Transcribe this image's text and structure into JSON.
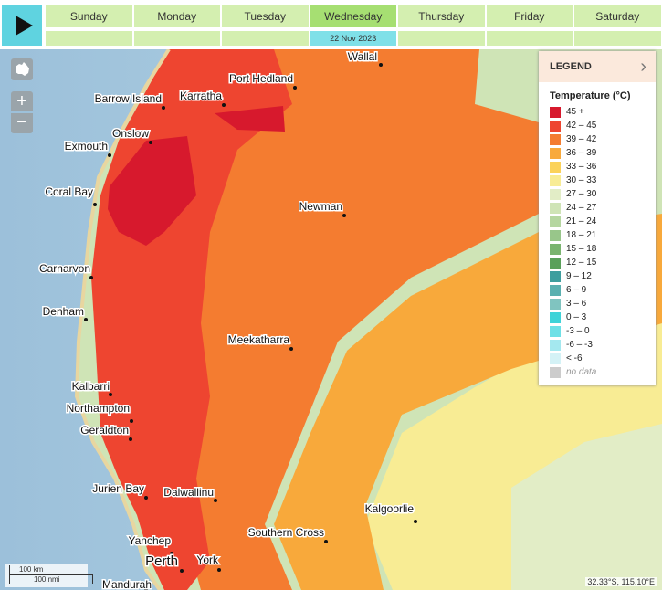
{
  "days": [
    "Sunday",
    "Monday",
    "Tuesday",
    "Wednesday",
    "Thursday",
    "Friday",
    "Saturday"
  ],
  "selected_day": 3,
  "selected_date": "22 Nov 2023",
  "legend": {
    "header": "LEGEND",
    "title": "Temperature (°C)",
    "items": [
      {
        "label": "45 +",
        "color": "#d7192d"
      },
      {
        "label": "42 – 45",
        "color": "#ee4530"
      },
      {
        "label": "39 – 42",
        "color": "#f47c30"
      },
      {
        "label": "36 – 39",
        "color": "#f8a93b"
      },
      {
        "label": "33 – 36",
        "color": "#fbd25a"
      },
      {
        "label": "30 – 33",
        "color": "#f8ec94"
      },
      {
        "label": "27 – 30",
        "color": "#e2edc6"
      },
      {
        "label": "24 – 27",
        "color": "#cfe4b6"
      },
      {
        "label": "21 – 24",
        "color": "#b5d6a0"
      },
      {
        "label": "18 – 21",
        "color": "#98c68a"
      },
      {
        "label": "15 – 18",
        "color": "#7ab46f"
      },
      {
        "label": "12 – 15",
        "color": "#5aa05a"
      },
      {
        "label": "9 – 12",
        "color": "#3e9e9e"
      },
      {
        "label": "6 – 9",
        "color": "#5ab0b0"
      },
      {
        "label": "3 – 6",
        "color": "#80c4c0"
      },
      {
        "label": "0 – 3",
        "color": "#3fd3d8"
      },
      {
        "label": "-3 – 0",
        "color": "#6ee0e6"
      },
      {
        "label": "-6 – -3",
        "color": "#a4e8ef"
      },
      {
        "label": "< -6",
        "color": "#d4f2f6"
      },
      {
        "label": "no data",
        "color": "#cccccc"
      }
    ]
  },
  "towns": [
    "Wallal",
    "Port Hedland",
    "Karratha",
    "Barrow Island",
    "Onslow",
    "Exmouth",
    "Coral Bay",
    "Newman",
    "Carnarvon",
    "Denham",
    "Meekatharra",
    "Kalbarri",
    "Northampton",
    "Geraldton",
    "Jurien Bay",
    "Dalwallinu",
    "Kalgoorlie",
    "Southern Cross",
    "Yanchep",
    "Perth",
    "York",
    "Mandurah"
  ],
  "scale": [
    "100 km",
    "100 nmi"
  ],
  "coordinates": "32.33°S, 115.10°E"
}
